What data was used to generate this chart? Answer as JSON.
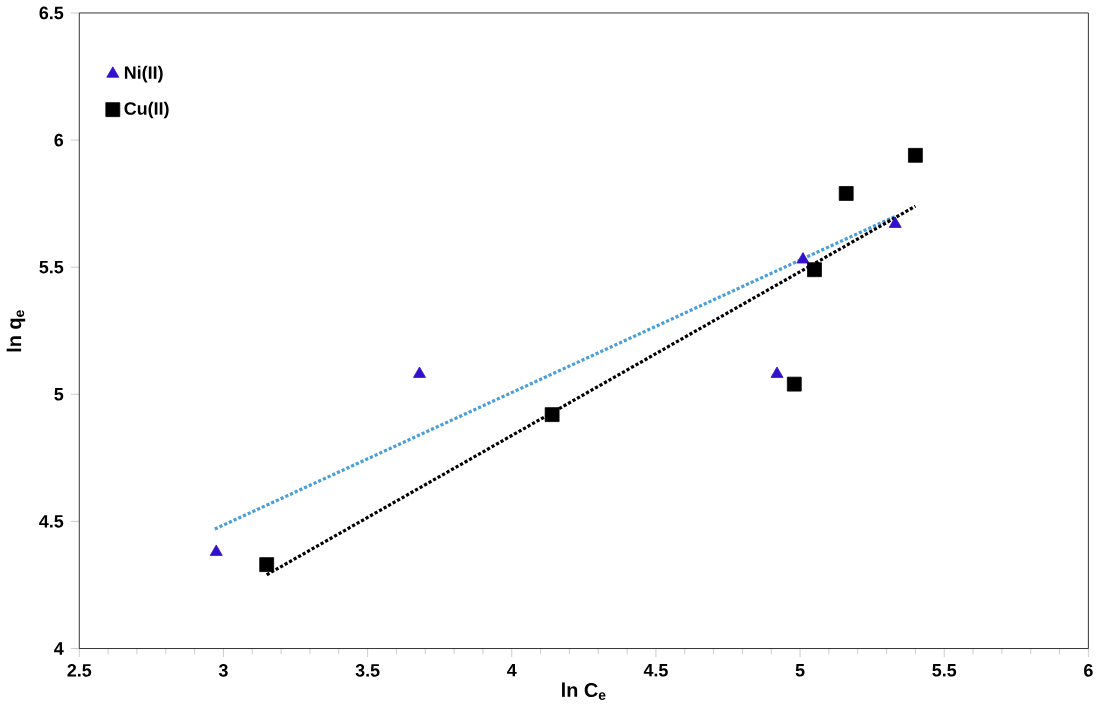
{
  "chart_data": {
    "type": "scatter",
    "xlabel": "ln C$_{e}$",
    "ylabel": "ln q$_{e}$",
    "xlim": [
      2.5,
      6
    ],
    "xticks": [
      2.5,
      3,
      3.5,
      4,
      4.5,
      5,
      5.5,
      6
    ],
    "ylim": [
      4,
      6.5
    ],
    "yticks": [
      4,
      4.5,
      5,
      5.5,
      6,
      6.5
    ],
    "grid": false,
    "legend": "top left",
    "series": [
      {
        "name": "Ni(II)",
        "color": "#3311cc",
        "marker": "triangle",
        "x": [
          2.975,
          3.68,
          4.92,
          5.01,
          5.33
        ],
        "values": [
          4.38,
          5.08,
          5.08,
          5.53,
          5.67
        ]
      },
      {
        "name": "Cu(II)",
        "color": "#000000",
        "marker": "square",
        "x": [
          3.15,
          4.14,
          4.98,
          5.05,
          5.16,
          5.4
        ],
        "values": [
          4.33,
          4.92,
          5.04,
          5.49,
          5.79,
          5.94
        ]
      },
      {
        "type": "line",
        "color": "#4a9fd8",
        "line_style": "dotted",
        "x": [
          2.97,
          5.33
        ],
        "values": [
          4.47,
          5.7
        ]
      },
      {
        "type": "line",
        "color": "#000000",
        "line_style": "dotted",
        "x": [
          3.15,
          5.4
        ],
        "values": [
          4.29,
          5.74
        ]
      }
    ]
  }
}
